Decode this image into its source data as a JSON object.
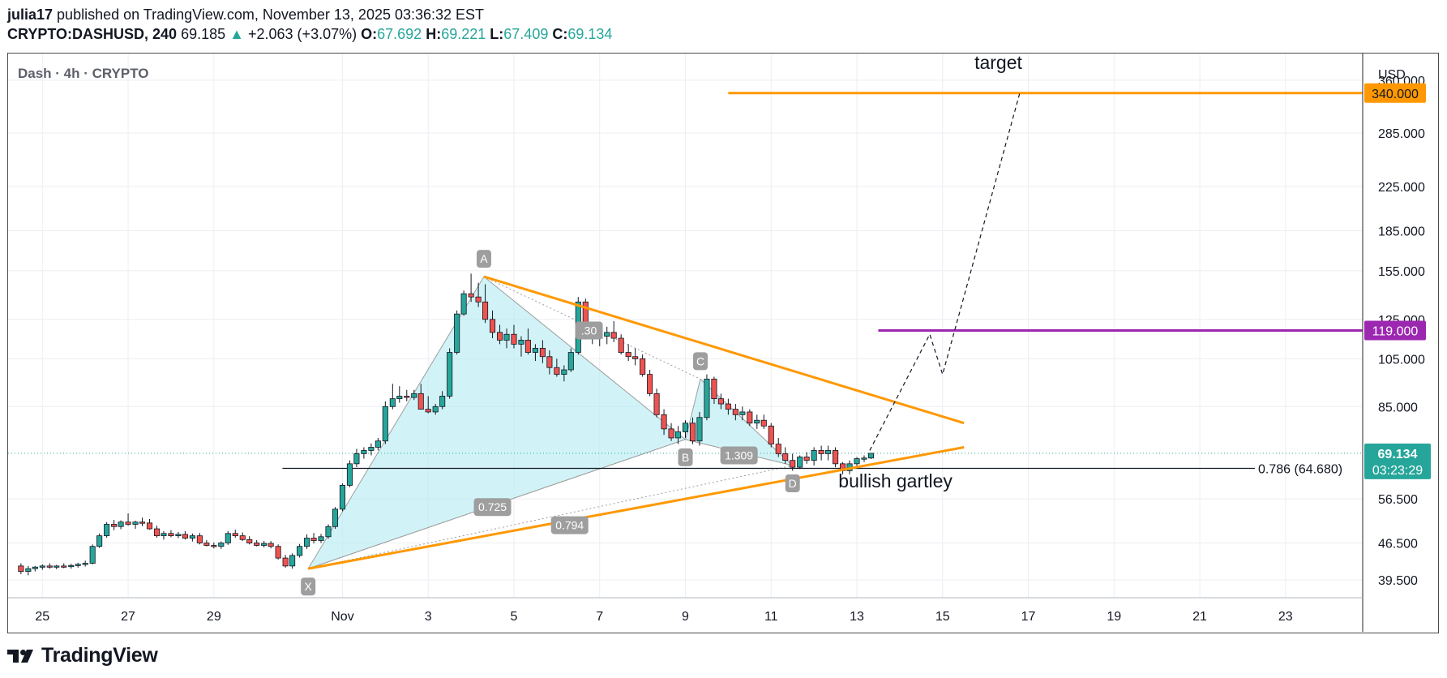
{
  "header": {
    "publisher": "julia17",
    "published_text": "published on TradingView.com, November 13, 2025 03:36:32 EST",
    "symbol": "CRYPTO:DASHUSD, 240",
    "last": "69.185",
    "change_arrow": "▲",
    "change": "+2.063 (+3.07%)",
    "ohlc": [
      {
        "k": "O:",
        "v": "67.692"
      },
      {
        "k": "H:",
        "v": "69.221"
      },
      {
        "k": "L:",
        "v": "67.409"
      },
      {
        "k": "C:",
        "v": "69.134"
      }
    ]
  },
  "chart_title": "Dash · 4h · CRYPTO",
  "currency": "USD",
  "chart_data": {
    "type": "candlestick",
    "scale": "log",
    "ylim": [
      36.5,
      405
    ],
    "xlim": [
      -0.8,
      30.8
    ],
    "y_ticks": [
      39.5,
      46.5,
      56.5,
      85,
      105,
      125,
      155,
      185,
      225,
      285,
      360
    ],
    "y_tick_labels": [
      "39.500",
      "46.500",
      "56.500",
      "85.000",
      "105.000",
      "125.000",
      "155.000",
      "185.000",
      "225.000",
      "285.000",
      "360.000"
    ],
    "x_ticks": [
      {
        "x": 0,
        "label": "25"
      },
      {
        "x": 2,
        "label": "27"
      },
      {
        "x": 4,
        "label": "29"
      },
      {
        "x": 7,
        "label": "Nov"
      },
      {
        "x": 9,
        "label": "3"
      },
      {
        "x": 11,
        "label": "5"
      },
      {
        "x": 13,
        "label": "7"
      },
      {
        "x": 15,
        "label": "9"
      },
      {
        "x": 17,
        "label": "11"
      },
      {
        "x": 19,
        "label": "13"
      },
      {
        "x": 21,
        "label": "15"
      },
      {
        "x": 23,
        "label": "17"
      },
      {
        "x": 25,
        "label": "19"
      },
      {
        "x": 27,
        "label": "21"
      },
      {
        "x": 29,
        "label": "23"
      }
    ],
    "candles": [
      [
        -0.5,
        42,
        42.5,
        40.5,
        41
      ],
      [
        -0.33,
        41,
        42,
        40.3,
        41.5
      ],
      [
        -0.17,
        41.5,
        42,
        41,
        41.8
      ],
      [
        0,
        41.8,
        42.3,
        41.3,
        42
      ],
      [
        0.17,
        42,
        42.5,
        41.5,
        41.8
      ],
      [
        0.33,
        41.8,
        42.2,
        41.4,
        42
      ],
      [
        0.5,
        42,
        42.5,
        41.6,
        41.9
      ],
      [
        0.67,
        41.9,
        42.4,
        41.5,
        42.1
      ],
      [
        0.83,
        42.1,
        42.6,
        41.7,
        42.3
      ],
      [
        1,
        42.3,
        43,
        41.9,
        42.5
      ],
      [
        1.17,
        42.5,
        46.2,
        42.3,
        45.8
      ],
      [
        1.33,
        45.8,
        48.5,
        45.5,
        48
      ],
      [
        1.5,
        48,
        51,
        47.6,
        50.5
      ],
      [
        1.67,
        50.5,
        51.5,
        49.2,
        50
      ],
      [
        1.83,
        50,
        51.4,
        49.4,
        51
      ],
      [
        2,
        51,
        53,
        50.2,
        50.5
      ],
      [
        2.17,
        50.5,
        51.3,
        49.5,
        51
      ],
      [
        2.33,
        51,
        52,
        50.1,
        50.8
      ],
      [
        2.5,
        50.8,
        51.7,
        49.3,
        49.5
      ],
      [
        2.67,
        49.5,
        50.2,
        47.6,
        48
      ],
      [
        2.83,
        48,
        49,
        47.2,
        48.5
      ],
      [
        3,
        48.5,
        49.2,
        47.7,
        48
      ],
      [
        3.17,
        48,
        48.8,
        47.5,
        48.3
      ],
      [
        3.33,
        48.3,
        49,
        47.2,
        47.5
      ],
      [
        3.5,
        47.5,
        48.5,
        46.8,
        48
      ],
      [
        3.67,
        48,
        48.6,
        46.2,
        46.5
      ],
      [
        3.83,
        46.5,
        47.1,
        45.8,
        46
      ],
      [
        4,
        46,
        46.6,
        45.4,
        45.8
      ],
      [
        4.17,
        45.8,
        46.8,
        45.3,
        46.5
      ],
      [
        4.33,
        46.5,
        49,
        46.1,
        48.5
      ],
      [
        4.5,
        48.5,
        49.3,
        47.6,
        48
      ],
      [
        4.67,
        48,
        48.7,
        46.9,
        47.2
      ],
      [
        4.83,
        47.2,
        47.9,
        46.2,
        46.5
      ],
      [
        5,
        46.5,
        47.1,
        45.8,
        46
      ],
      [
        5.17,
        46,
        46.9,
        45.6,
        46.4
      ],
      [
        5.33,
        46.4,
        46.9,
        45.4,
        45.8
      ],
      [
        5.5,
        45.8,
        46.2,
        43.2,
        43.5
      ],
      [
        5.67,
        43.5,
        44.1,
        41.7,
        42
      ],
      [
        5.83,
        42,
        44.4,
        41.5,
        44
      ],
      [
        6,
        44,
        46.3,
        43.6,
        45.8
      ],
      [
        6.17,
        45.8,
        48.3,
        45.3,
        47.5
      ],
      [
        6.33,
        47.5,
        48.6,
        46.4,
        47
      ],
      [
        6.5,
        47,
        48.4,
        46.5,
        47.8
      ],
      [
        6.67,
        47.8,
        50.5,
        47.4,
        50
      ],
      [
        6.83,
        50,
        54.5,
        49.5,
        54
      ],
      [
        7,
        54,
        60.5,
        53.5,
        60
      ],
      [
        7.17,
        60,
        67,
        59.5,
        66
      ],
      [
        7.33,
        66,
        70.5,
        65,
        69
      ],
      [
        7.5,
        69,
        71,
        67.5,
        70
      ],
      [
        7.67,
        70,
        72.2,
        68.5,
        71
      ],
      [
        7.83,
        71,
        74,
        70,
        73
      ],
      [
        8,
        73,
        87,
        72,
        85
      ],
      [
        8.17,
        85,
        94,
        84,
        88
      ],
      [
        8.33,
        88,
        93,
        86.5,
        89
      ],
      [
        8.5,
        89,
        91.5,
        87,
        88.5
      ],
      [
        8.67,
        88.5,
        91.5,
        87.5,
        90
      ],
      [
        8.83,
        90,
        94,
        85,
        84
      ],
      [
        9,
        84,
        89,
        82.5,
        83
      ],
      [
        9.17,
        83,
        86,
        82,
        85
      ],
      [
        9.33,
        85,
        91,
        84,
        89
      ],
      [
        9.5,
        89,
        110,
        88,
        108
      ],
      [
        9.67,
        108,
        130,
        107,
        128
      ],
      [
        9.83,
        128,
        142,
        127,
        140
      ],
      [
        10,
        140,
        153,
        135,
        138
      ],
      [
        10.17,
        138,
        147,
        132,
        135
      ],
      [
        10.33,
        135,
        146,
        123,
        125
      ],
      [
        10.5,
        125,
        130,
        115,
        118
      ],
      [
        10.67,
        118,
        122,
        112,
        114
      ],
      [
        10.83,
        114,
        120,
        110,
        117
      ],
      [
        11,
        117,
        122,
        110,
        112
      ],
      [
        11.17,
        112,
        116,
        106,
        114
      ],
      [
        11.33,
        114,
        120,
        107,
        108
      ],
      [
        11.5,
        108,
        112,
        104,
        110
      ],
      [
        11.67,
        110,
        114,
        103,
        106
      ],
      [
        11.83,
        106,
        109,
        98,
        101
      ],
      [
        12,
        101,
        105,
        97,
        98
      ],
      [
        12.17,
        98,
        102,
        95,
        100
      ],
      [
        12.33,
        100,
        110,
        99,
        108
      ],
      [
        12.5,
        108,
        138,
        107,
        135
      ],
      [
        12.67,
        135,
        137,
        115,
        117
      ],
      [
        12.83,
        117,
        122,
        112,
        115
      ],
      [
        13,
        115,
        120,
        111,
        116
      ],
      [
        13.17,
        116,
        121,
        112,
        118
      ],
      [
        13.33,
        118,
        124,
        113,
        115
      ],
      [
        13.5,
        115,
        117,
        107,
        108
      ],
      [
        13.67,
        108,
        112,
        104,
        106
      ],
      [
        13.83,
        106,
        110,
        102,
        105
      ],
      [
        14,
        105,
        107,
        97,
        98
      ],
      [
        14.17,
        98,
        100,
        89,
        90
      ],
      [
        14.33,
        90,
        92,
        81,
        82
      ],
      [
        14.5,
        82,
        84,
        75,
        77
      ],
      [
        14.67,
        77,
        79,
        73,
        74
      ],
      [
        14.83,
        74,
        78,
        72,
        76
      ],
      [
        15,
        76,
        80,
        74,
        79
      ],
      [
        15.17,
        79,
        81,
        72,
        73
      ],
      [
        15.33,
        73,
        83,
        71.5,
        81
      ],
      [
        15.5,
        81,
        98,
        80,
        96
      ],
      [
        15.67,
        96,
        97,
        86,
        88
      ],
      [
        15.83,
        88,
        90,
        84,
        86
      ],
      [
        16,
        86,
        88,
        82,
        84
      ],
      [
        16.17,
        84,
        86,
        80,
        82
      ],
      [
        16.33,
        82,
        85,
        80,
        83
      ],
      [
        16.5,
        83,
        84,
        78,
        79
      ],
      [
        16.67,
        79,
        82,
        77,
        80
      ],
      [
        16.83,
        80,
        82,
        77,
        78
      ],
      [
        17,
        78,
        79,
        71,
        72
      ],
      [
        17.17,
        72,
        74,
        68,
        69
      ],
      [
        17.33,
        69,
        71,
        66,
        67
      ],
      [
        17.5,
        67,
        69,
        64,
        65
      ],
      [
        17.67,
        65,
        68.5,
        64.5,
        68
      ],
      [
        17.83,
        68,
        69.5,
        66,
        67
      ],
      [
        18,
        67,
        71,
        65.5,
        70
      ],
      [
        18.17,
        70,
        71.5,
        67,
        69
      ],
      [
        18.33,
        69,
        71.5,
        67,
        70
      ],
      [
        18.5,
        70,
        71,
        65,
        66
      ],
      [
        18.67,
        66,
        66.5,
        63,
        64
      ],
      [
        18.83,
        64,
        67,
        63,
        66
      ],
      [
        19,
        66,
        68,
        65,
        67.5
      ],
      [
        19.17,
        67.5,
        68.5,
        66.5,
        67.7
      ],
      [
        19.33,
        67.7,
        69.2,
        67.4,
        69.13
      ]
    ],
    "horizontal_levels": [
      {
        "label": "340.000",
        "value": 340,
        "color": "#ff9800",
        "x_from": 16
      },
      {
        "label": "119.000",
        "value": 119,
        "color": "#9c27b0",
        "x_from": 19.5
      },
      {
        "label": "0.786 (64.680)",
        "value": 64.68,
        "color": "#131722",
        "x_from": 5.6
      }
    ],
    "last_price": {
      "label": "69.134",
      "countdown": "03:23:29",
      "value": 69.134,
      "color": "#26a69a"
    },
    "pattern": {
      "name": "bullish gartley",
      "points": [
        {
          "label": "X",
          "x": 6.2,
          "y": 41.5
        },
        {
          "label": "A",
          "x": 10.3,
          "y": 151
        },
        {
          "label": "B",
          "x": 15.0,
          "y": 73.5
        },
        {
          "label": "C",
          "x": 15.35,
          "y": 96
        },
        {
          "label": "D",
          "x": 17.5,
          "y": 65.5
        }
      ],
      "ratios": [
        {
          "label": "0.725",
          "x": 10.5,
          "y": 54.5
        },
        {
          "label": "1.309",
          "x": 16.25,
          "y": 68.5
        },
        {
          "label": "0.794",
          "x": 12.3,
          "y": 50.3
        },
        {
          "label": ".30",
          "x": 12.75,
          "y": 119
        }
      ]
    },
    "trendlines": [
      {
        "from": [
          10.3,
          151
        ],
        "to": [
          21.5,
          79
        ],
        "color": "#ff9800"
      },
      {
        "from": [
          6.2,
          41.5
        ],
        "to": [
          21.5,
          71
        ],
        "color": "#ff9800"
      }
    ],
    "projection": [
      [
        19.3,
        70
      ],
      [
        20.7,
        117
      ],
      [
        21.0,
        98
      ],
      [
        22.8,
        340
      ]
    ],
    "annotations": [
      {
        "text": "target",
        "x": 22.3,
        "y": 378
      },
      {
        "text": "bullish gartley",
        "x": 19.9,
        "y": 59.5
      }
    ]
  },
  "footer": {
    "brand": "TradingView"
  }
}
